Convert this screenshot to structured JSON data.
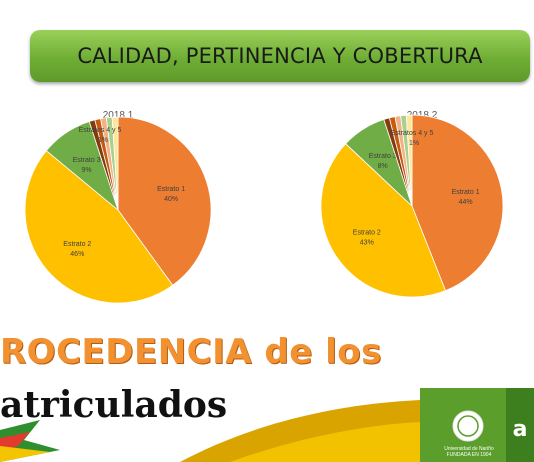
{
  "banner": {
    "title": "CALIDAD, PERTINENCIA Y COBERTURA"
  },
  "chart_data": [
    {
      "type": "pie",
      "title": "2018 1",
      "slices": [
        {
          "label": "Estrato 1",
          "value": 40,
          "display": "40%",
          "color": "#ed7d31"
        },
        {
          "label": "Estrato 2",
          "value": 46,
          "display": "46%",
          "color": "#ffc000"
        },
        {
          "label": "Estrato 3",
          "value": 9,
          "display": "9%",
          "color": "#70ad47"
        },
        {
          "label": "Estrato 4 y 5",
          "value": 1,
          "display": "",
          "color": "#843c0c"
        },
        {
          "label": "",
          "value": 1,
          "display": "",
          "color": "#c55a11"
        },
        {
          "label": "",
          "value": 1,
          "display": "1%",
          "color": "#f4b183"
        },
        {
          "label": "",
          "value": 1,
          "display": "",
          "color": "#a9d18e"
        },
        {
          "label": "",
          "value": 1,
          "display": "",
          "color": "#ffe699"
        }
      ],
      "group_label": "Estratos 4 y 5"
    },
    {
      "type": "pie",
      "title": "2018 2",
      "slices": [
        {
          "label": "Estrato 1",
          "value": 44,
          "display": "44%",
          "color": "#ed7d31"
        },
        {
          "label": "Estrato 2",
          "value": 43,
          "display": "43%",
          "color": "#ffc000"
        },
        {
          "label": "Estrato 3",
          "value": 8,
          "display": "8%",
          "color": "#70ad47"
        },
        {
          "label": "",
          "value": 1,
          "display": "",
          "color": "#843c0c"
        },
        {
          "label": "",
          "value": 1,
          "display": "",
          "color": "#c55a11"
        },
        {
          "label": "",
          "value": 1,
          "display": "1%",
          "color": "#f4b183"
        },
        {
          "label": "",
          "value": 1,
          "display": "",
          "color": "#a9d18e"
        },
        {
          "label": "",
          "value": 1,
          "display": "",
          "color": "#ffe699"
        }
      ],
      "group_label": "Estratos 4 y 5"
    }
  ],
  "footer": {
    "heading_line1": "ROCEDENCIA de los",
    "heading_line2": "atriculados",
    "logo_text1": "Universidad de Nariño",
    "logo_text2": "FUNDADA EN 1904"
  },
  "colors": {
    "accent_orange": "#f29130",
    "banner_green": "#6fae35",
    "footer_green": "#5b9e2c",
    "footer_gold": "#d9a400"
  }
}
